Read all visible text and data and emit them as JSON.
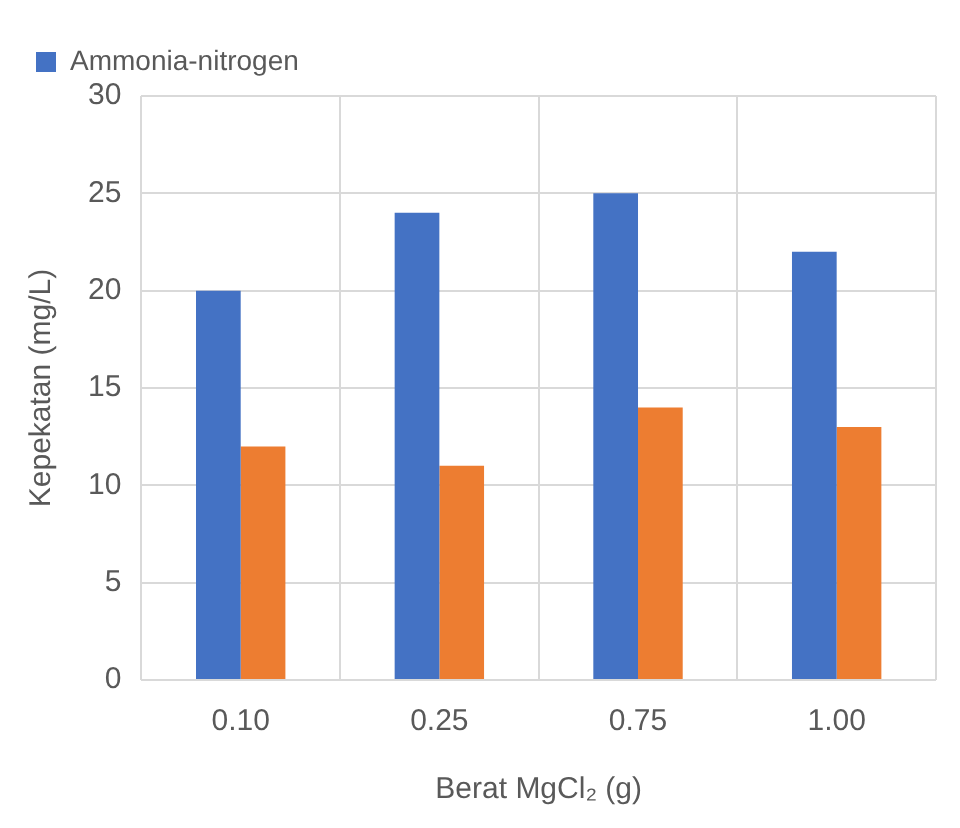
{
  "chart_data": {
    "type": "bar",
    "xlabel": "Berat MgCl₂ (g)",
    "ylabel": "Kepekatan (mg/L)",
    "categories": [
      "0.10",
      "0.25",
      "0.75",
      "1.00"
    ],
    "series": [
      {
        "name": "Ammonia-nitrogen",
        "color": "#4472c4",
        "values": [
          20,
          24,
          25,
          22
        ]
      },
      {
        "color": "#ed7d31",
        "values": [
          12,
          11,
          14,
          13
        ]
      }
    ],
    "ylim": [
      0,
      30
    ],
    "yticks": [
      0,
      5,
      10,
      15,
      20,
      25,
      30
    ],
    "grid": true,
    "legend": "top left"
  }
}
